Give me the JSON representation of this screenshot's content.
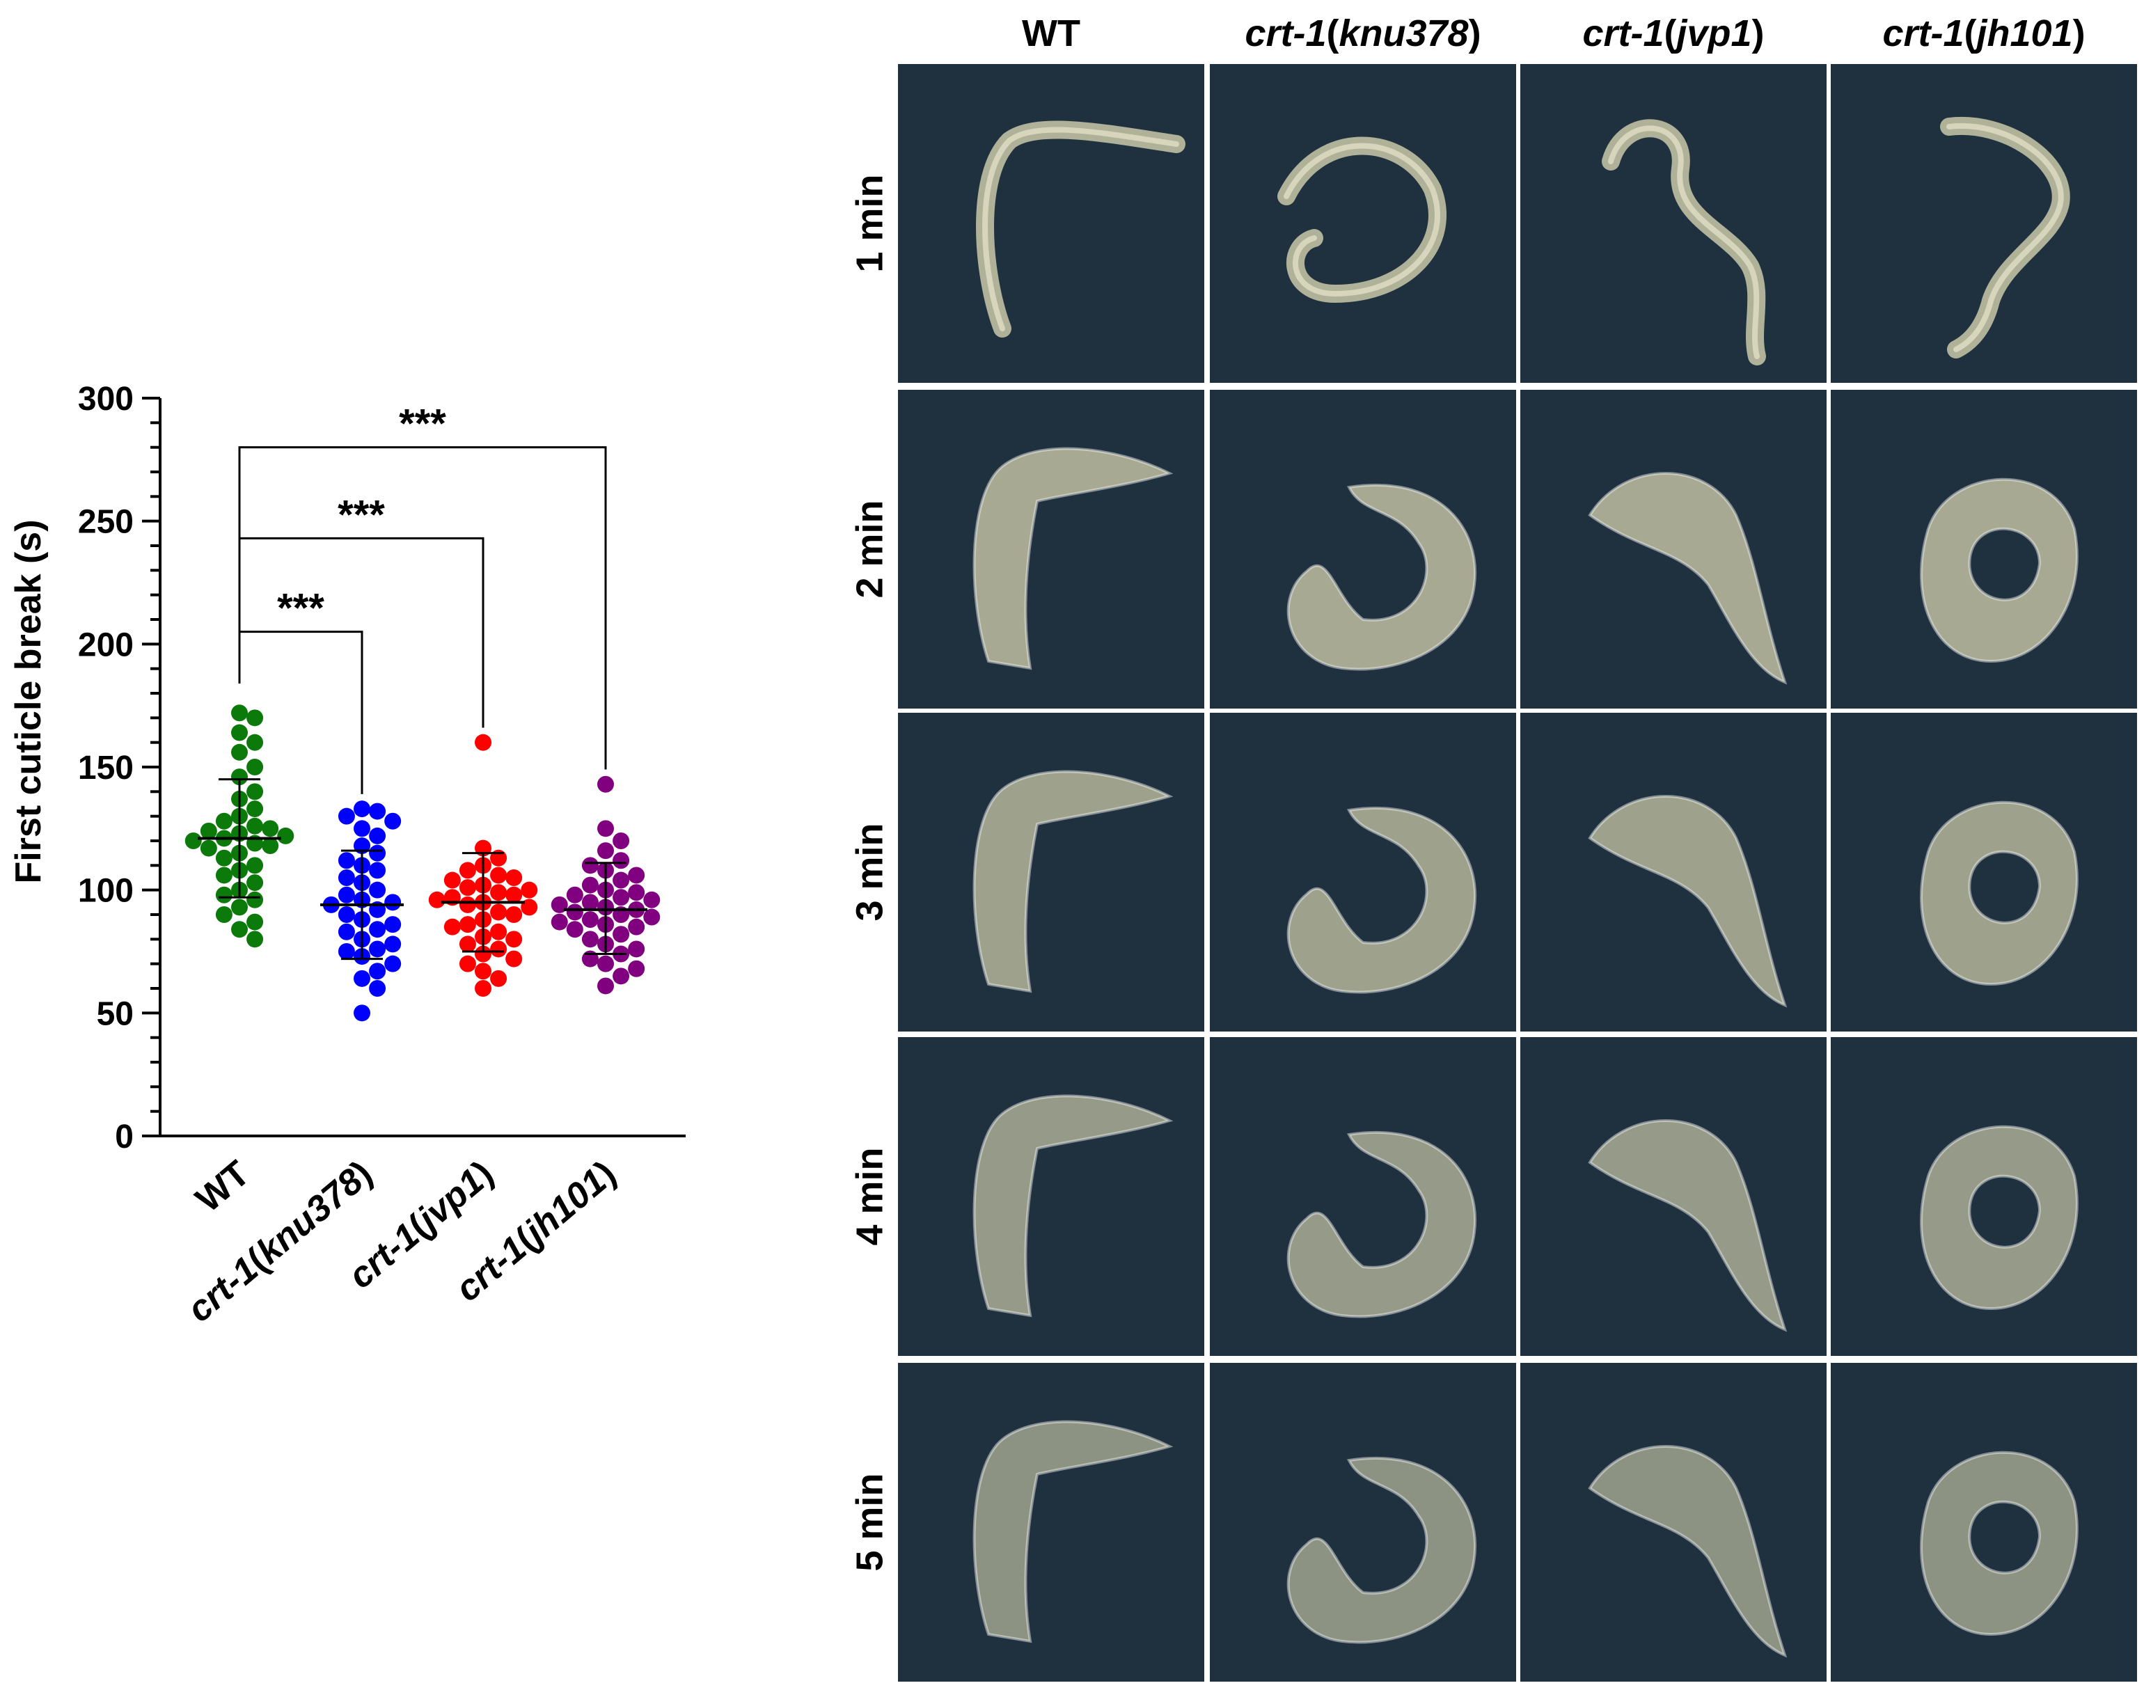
{
  "chart_data": {
    "type": "scatter",
    "ylabel": "First cuticle break (s)",
    "ylim": [
      0,
      300
    ],
    "yticks": [
      0,
      50,
      100,
      150,
      200,
      250,
      300
    ],
    "categories": [
      "WT",
      "crt-1(knu378)",
      "crt-1(jvp1)",
      "crt-1(jh101)"
    ],
    "series": [
      {
        "color": "#0b7a0b",
        "mean": 121,
        "sd_low": 97,
        "sd_high": 145,
        "values": [
          172,
          170,
          164,
          160,
          156,
          150,
          146,
          140,
          137,
          133,
          130,
          128,
          126,
          125,
          124,
          123,
          122,
          121,
          120,
          119,
          118,
          117,
          115,
          113,
          110,
          108,
          106,
          103,
          100,
          98,
          96,
          93,
          90,
          87,
          84,
          80
        ]
      },
      {
        "color": "#0000ff",
        "mean": 94,
        "sd_low": 72,
        "sd_high": 116,
        "values": [
          133,
          132,
          130,
          128,
          125,
          122,
          118,
          115,
          112,
          110,
          108,
          105,
          103,
          100,
          98,
          96,
          95,
          94,
          92,
          90,
          88,
          86,
          84,
          83,
          80,
          78,
          76,
          75,
          73,
          70,
          67,
          64,
          60,
          50
        ]
      },
      {
        "color": "#ff0000",
        "mean": 95,
        "sd_low": 75,
        "sd_high": 115,
        "values": [
          160,
          117,
          113,
          110,
          108,
          106,
          105,
          104,
          102,
          101,
          100,
          99,
          98,
          97,
          96,
          95,
          94,
          93,
          91,
          90,
          88,
          86,
          85,
          83,
          81,
          80,
          78,
          76,
          74,
          72,
          70,
          67,
          64,
          60
        ]
      },
      {
        "color": "#800080",
        "mean": 92,
        "sd_low": 74,
        "sd_high": 111,
        "values": [
          143,
          125,
          120,
          116,
          112,
          110,
          108,
          106,
          104,
          102,
          100,
          99,
          98,
          97,
          96,
          95,
          94,
          93,
          92,
          91,
          90,
          89,
          88,
          87,
          86,
          85,
          84,
          82,
          80,
          78,
          76,
          74,
          72,
          70,
          68,
          65,
          61
        ]
      }
    ],
    "significance": [
      {
        "from": "WT",
        "to": "crt-1(knu378)",
        "label": "***",
        "y": 205
      },
      {
        "from": "WT",
        "to": "crt-1(jvp1)",
        "label": "***",
        "y": 243
      },
      {
        "from": "WT",
        "to": "crt-1(jh101)",
        "label": "***",
        "y": 280
      }
    ]
  },
  "image_grid": {
    "columns": [
      {
        "plain": "WT",
        "italic": "",
        "paren": ""
      },
      {
        "plain": "",
        "italic": "crt-1",
        "paren": "knu378"
      },
      {
        "plain": "",
        "italic": "crt-1",
        "paren": "jvp1"
      },
      {
        "plain": "",
        "italic": "crt-1",
        "paren": "jh101"
      }
    ],
    "rows": [
      "1 min",
      "2 min",
      "3 min",
      "4 min",
      "5 min"
    ],
    "background_color": "#1f313f",
    "worm_color": "#c9c8a8"
  }
}
